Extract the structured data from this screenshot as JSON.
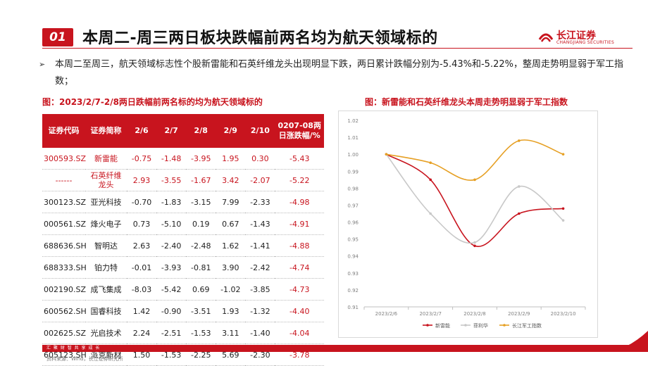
{
  "header": {
    "number": "01",
    "title": "本周二-周三两日板块跌幅前两名均为航天领域标的",
    "logo_cn": "长江证券",
    "logo_en": "CHANGJIANG SECURITIES"
  },
  "bullet": {
    "text": "本周二至周三，航天领域标志性个股新雷能和石英纤维龙头出现明显下跌，两日累计跌幅分别为-5.43%和-5.22%，整周走势明显弱于军工指数；"
  },
  "table": {
    "title": "图：2023/2/7-2/8两日跌幅前两名标的均为航天领域标的",
    "headers": [
      "证券代码",
      "证券简称",
      "2/6",
      "2/7",
      "2/8",
      "2/9",
      "2/10",
      "0207-08两日涨跌幅/%"
    ],
    "rows": [
      {
        "code": "300593.SZ",
        "name": "新雷能",
        "v1": "-0.75",
        "v2": "-1.48",
        "v3": "-3.95",
        "v4": "1.95",
        "v5": "0.30",
        "chg": "-5.43"
      },
      {
        "code": "------",
        "name": "石英纤维龙头",
        "v1": "2.93",
        "v2": "-3.55",
        "v3": "-1.67",
        "v4": "3.42",
        "v5": "-2.07",
        "chg": "-5.22"
      },
      {
        "code": "300123.SZ",
        "name": "亚光科技",
        "v1": "-0.70",
        "v2": "-1.83",
        "v3": "-3.15",
        "v4": "7.99",
        "v5": "-2.33",
        "chg": "-4.98"
      },
      {
        "code": "000561.SZ",
        "name": "烽火电子",
        "v1": "0.73",
        "v2": "-5.10",
        "v3": "0.19",
        "v4": "0.67",
        "v5": "-1.43",
        "chg": "-4.91"
      },
      {
        "code": "688636.SH",
        "name": "智明达",
        "v1": "2.63",
        "v2": "-2.40",
        "v3": "-2.48",
        "v4": "1.62",
        "v5": "-1.41",
        "chg": "-4.88"
      },
      {
        "code": "688333.SH",
        "name": "铂力特",
        "v1": "-0.01",
        "v2": "-3.93",
        "v3": "-0.81",
        "v4": "3.90",
        "v5": "-2.42",
        "chg": "-4.74"
      },
      {
        "code": "002190.SZ",
        "name": "成飞集成",
        "v1": "-8.03",
        "v2": "-5.42",
        "v3": "0.69",
        "v4": "-1.02",
        "v5": "-3.85",
        "chg": "-4.73"
      },
      {
        "code": "600562.SH",
        "name": "国睿科技",
        "v1": "1.42",
        "v2": "-0.90",
        "v3": "-3.51",
        "v4": "1.93",
        "v5": "-1.32",
        "chg": "-4.40"
      },
      {
        "code": "002625.SZ",
        "name": "光启技术",
        "v1": "2.24",
        "v2": "-2.51",
        "v3": "-1.53",
        "v4": "3.11",
        "v5": "-1.40",
        "chg": "-4.04"
      },
      {
        "code": "605123.SH",
        "name": "派克新材",
        "v1": "1.50",
        "v2": "-1.53",
        "v3": "-2.25",
        "v4": "5.69",
        "v5": "-2.30",
        "chg": "-3.78"
      }
    ]
  },
  "chart_data": {
    "type": "line",
    "title": "图：新雷能和石英纤维龙头本周走势明显弱于军工指数",
    "x": [
      "2023/2/6",
      "2023/2/7",
      "2023/2/8",
      "2023/2/9",
      "2023/2/10"
    ],
    "ylim": [
      0.91,
      1.02
    ],
    "yticks": [
      "0.91",
      "0.92",
      "0.93",
      "0.94",
      "0.95",
      "0.96",
      "0.97",
      "0.98",
      "0.99",
      "1.00",
      "1.01",
      "1.02"
    ],
    "grid": false,
    "legend_position": "bottom",
    "series": [
      {
        "name": "新雷能",
        "color": "#c8141e",
        "values": [
          1.0,
          0.985,
          0.946,
          0.965,
          0.968
        ]
      },
      {
        "name": "菲利华",
        "color": "#c8c8c8",
        "values": [
          1.0,
          0.965,
          0.948,
          0.981,
          0.961
        ]
      },
      {
        "name": "长江军工指数",
        "color": "#e6a024",
        "values": [
          1.0,
          0.995,
          0.985,
          1.008,
          1.0
        ]
      }
    ]
  },
  "footer": {
    "slogan": "汇 聚 财 智      共 享 成 长",
    "source": "资料来源：Wind，长江证券研究所"
  }
}
